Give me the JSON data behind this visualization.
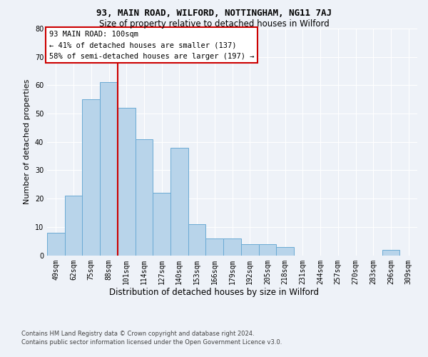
{
  "title1": "93, MAIN ROAD, WILFORD, NOTTINGHAM, NG11 7AJ",
  "title2": "Size of property relative to detached houses in Wilford",
  "xlabel": "Distribution of detached houses by size in Wilford",
  "ylabel": "Number of detached properties",
  "categories": [
    "49sqm",
    "62sqm",
    "75sqm",
    "88sqm",
    "101sqm",
    "114sqm",
    "127sqm",
    "140sqm",
    "153sqm",
    "166sqm",
    "179sqm",
    "192sqm",
    "205sqm",
    "218sqm",
    "231sqm",
    "244sqm",
    "257sqm",
    "270sqm",
    "283sqm",
    "296sqm",
    "309sqm"
  ],
  "values": [
    8,
    21,
    55,
    61,
    52,
    41,
    22,
    38,
    11,
    6,
    6,
    4,
    4,
    3,
    0,
    0,
    0,
    0,
    0,
    2,
    0
  ],
  "bar_color": "#b8d4ea",
  "bar_edge_color": "#6aaad4",
  "vline_color": "#cc0000",
  "vline_pos": 3.5,
  "annotation_line1": "93 MAIN ROAD: 100sqm",
  "annotation_line2": "← 41% of detached houses are smaller (137)",
  "annotation_line3": "58% of semi-detached houses are larger (197) →",
  "ylim": [
    0,
    80
  ],
  "yticks": [
    0,
    10,
    20,
    30,
    40,
    50,
    60,
    70,
    80
  ],
  "footer1": "Contains HM Land Registry data © Crown copyright and database right 2024.",
  "footer2": "Contains public sector information licensed under the Open Government Licence v3.0.",
  "background_color": "#eef2f8",
  "plot_background": "#eef2f8",
  "title1_fontsize": 9,
  "title2_fontsize": 8.5,
  "ylabel_fontsize": 8,
  "xlabel_fontsize": 8.5,
  "tick_fontsize": 7,
  "footer_fontsize": 6,
  "annot_fontsize": 7.5
}
